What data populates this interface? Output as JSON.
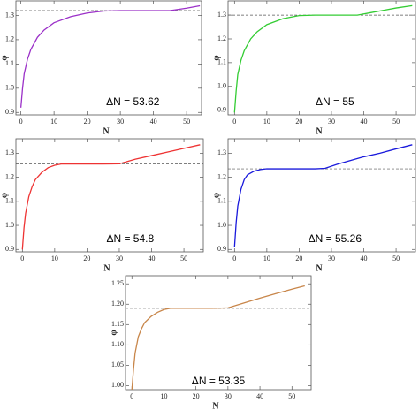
{
  "chart_data": [
    {
      "type": "line",
      "annotation": "ΔN = 53.62",
      "xlabel": "N",
      "ylabel": "φ",
      "x": [
        0,
        0.5,
        1,
        2,
        3,
        5,
        7,
        10,
        15,
        20,
        25,
        30,
        35,
        40,
        45,
        50,
        54
      ],
      "series": [
        {
          "color": "#9b30c8",
          "values": [
            0.92,
            1.0,
            1.06,
            1.12,
            1.16,
            1.21,
            1.24,
            1.27,
            1.295,
            1.31,
            1.318,
            1.32,
            1.32,
            1.32,
            1.32,
            1.33,
            1.34
          ]
        }
      ],
      "hline": 1.32,
      "xlim": [
        -1.5,
        54.5
      ],
      "ylim": [
        0.89,
        1.36
      ],
      "xticks": [
        0,
        10,
        20,
        30,
        40,
        50
      ],
      "yticks": [
        0.9,
        {
          "value": 1,
          "label": "1.0"
        },
        1.1,
        1.2,
        1.3
      ]
    },
    {
      "type": "line",
      "annotation": "ΔN = 55",
      "xlabel": "N",
      "ylabel": "φ",
      "x": [
        0,
        0.5,
        1,
        2,
        3,
        5,
        7,
        10,
        15,
        20,
        25,
        30,
        35,
        38,
        42,
        46,
        50,
        55
      ],
      "series": [
        {
          "color": "#33cc33",
          "values": [
            0.89,
            0.98,
            1.05,
            1.11,
            1.15,
            1.2,
            1.23,
            1.26,
            1.285,
            1.298,
            1.3,
            1.3,
            1.3,
            1.3,
            1.31,
            1.32,
            1.33,
            1.34
          ]
        }
      ],
      "hline": 1.3,
      "xlim": [
        -2,
        56
      ],
      "ylim": [
        0.88,
        1.36
      ],
      "xticks": [
        0,
        10,
        20,
        30,
        40,
        50
      ],
      "yticks": [
        0.9,
        {
          "value": 1,
          "label": "1.0"
        },
        1.1,
        1.2,
        1.3
      ]
    },
    {
      "type": "line",
      "annotation": "ΔN = 54.8",
      "xlabel": "N",
      "ylabel": "φ",
      "x": [
        0,
        0.5,
        1,
        2,
        3,
        4,
        6,
        8,
        10,
        12,
        15,
        20,
        25,
        30,
        35,
        40,
        45,
        50,
        55
      ],
      "series": [
        {
          "color": "#ee3333",
          "values": [
            0.9,
            0.99,
            1.05,
            1.12,
            1.16,
            1.19,
            1.22,
            1.24,
            1.25,
            1.255,
            1.255,
            1.255,
            1.255,
            1.256,
            1.275,
            1.29,
            1.305,
            1.32,
            1.335
          ]
        }
      ],
      "hline": 1.255,
      "xlim": [
        -2,
        56
      ],
      "ylim": [
        0.89,
        1.36
      ],
      "xticks": [
        0,
        10,
        20,
        30,
        40,
        50
      ],
      "yticks": [
        0.9,
        {
          "value": 1,
          "label": "1.0"
        },
        1.1,
        1.2,
        1.3
      ]
    },
    {
      "type": "line",
      "annotation": "ΔN = 55.26",
      "xlabel": "N",
      "ylabel": "φ",
      "x": [
        0,
        0.5,
        1,
        2,
        3,
        4,
        6,
        8,
        10,
        15,
        20,
        25,
        28,
        32,
        36,
        40,
        45,
        50,
        55
      ],
      "series": [
        {
          "color": "#1a1adc",
          "values": [
            0.91,
            1.01,
            1.08,
            1.15,
            1.19,
            1.21,
            1.225,
            1.232,
            1.235,
            1.235,
            1.235,
            1.235,
            1.237,
            1.255,
            1.27,
            1.285,
            1.3,
            1.318,
            1.335
          ]
        }
      ],
      "hline": 1.235,
      "xlim": [
        -2,
        56
      ],
      "ylim": [
        0.89,
        1.36
      ],
      "xticks": [
        0,
        10,
        20,
        30,
        40,
        50
      ],
      "yticks": [
        0.9,
        {
          "value": 1,
          "label": "1.0"
        },
        1.1,
        1.2,
        1.3
      ]
    },
    {
      "type": "line",
      "annotation": "ΔN = 53.35",
      "xlabel": "N",
      "ylabel": "φ",
      "x": [
        0,
        0.5,
        1,
        2,
        3,
        4,
        6,
        8,
        10,
        12,
        15,
        20,
        25,
        30,
        35,
        40,
        45,
        50,
        54
      ],
      "series": [
        {
          "color": "#c8864a",
          "values": [
            0.99,
            1.04,
            1.08,
            1.12,
            1.14,
            1.155,
            1.17,
            1.18,
            1.187,
            1.19,
            1.19,
            1.19,
            1.19,
            1.191,
            1.203,
            1.215,
            1.226,
            1.237,
            1.245
          ]
        }
      ],
      "hline": 1.19,
      "xlim": [
        -2,
        56
      ],
      "ylim": [
        0.99,
        1.27
      ],
      "xticks": [
        0,
        10,
        20,
        30,
        40,
        50
      ],
      "yticks": [
        {
          "value": 1,
          "label": "1.00"
        },
        1.05,
        {
          "value": 1.1,
          "label": "1.10"
        },
        1.15,
        {
          "value": 1.2,
          "label": "1.20"
        },
        1.25
      ]
    }
  ]
}
